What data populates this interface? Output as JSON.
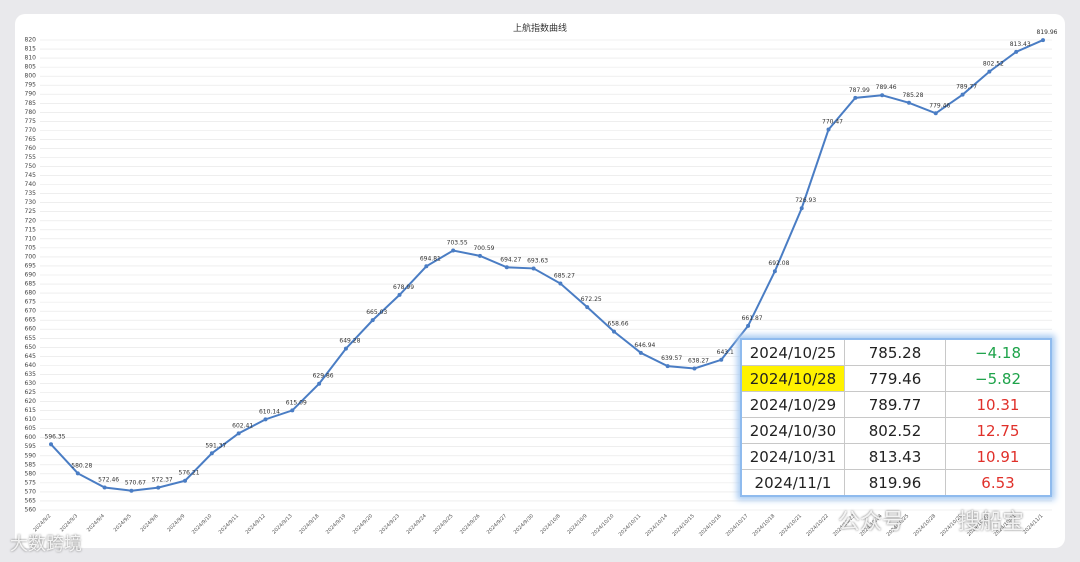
{
  "chart_data": {
    "type": "line",
    "title": "上航指数曲线",
    "categories": [
      "2024/9/2",
      "2024/9/3",
      "2024/9/4",
      "2024/9/5",
      "2024/9/6",
      "2024/9/9",
      "2024/9/10",
      "2024/9/11",
      "2024/9/12",
      "2024/9/13",
      "2024/9/18",
      "2024/9/19",
      "2024/9/20",
      "2024/9/23",
      "2024/9/24",
      "2024/9/25",
      "2024/9/26",
      "2024/9/27",
      "2024/9/30",
      "2024/10/8",
      "2024/10/9",
      "2024/10/10",
      "2024/10/11",
      "2024/10/14",
      "2024/10/15",
      "2024/10/16",
      "2024/10/17",
      "2024/10/18",
      "2024/10/21",
      "2024/10/22",
      "2024/10/23",
      "2024/10/24",
      "2024/10/25",
      "2024/10/28",
      "2024/10/29",
      "2024/10/30",
      "2024/10/31",
      "2024/11/1"
    ],
    "values": [
      596.35,
      580.28,
      572.46,
      570.67,
      572.37,
      576.21,
      591.37,
      602.41,
      610.14,
      615.09,
      629.86,
      649.28,
      665.03,
      678.99,
      694.81,
      703.55,
      700.59,
      694.27,
      693.63,
      685.27,
      672.25,
      658.66,
      646.94,
      639.57,
      638.27,
      643.1,
      661.87,
      692.08,
      726.93,
      770.47,
      787.99,
      789.46,
      785.28,
      779.46,
      789.77,
      802.52,
      813.43,
      819.96
    ],
    "color": "#4a7dc4",
    "ylim": [
      560,
      820
    ],
    "yticks": [
      560,
      565,
      570,
      575,
      580,
      585,
      590,
      595,
      600,
      605,
      610,
      615,
      620,
      625,
      630,
      635,
      640,
      645,
      650,
      655,
      660,
      665,
      670,
      675,
      680,
      685,
      690,
      695,
      700,
      705,
      710,
      715,
      720,
      725,
      730,
      735,
      740,
      745,
      750,
      755,
      760,
      765,
      770,
      775,
      780,
      785,
      790,
      795,
      800,
      805,
      810,
      815,
      820
    ],
    "grid": true
  },
  "table": {
    "rows": [
      [
        "2024/10/25",
        "785.28",
        "−4.18"
      ],
      [
        "2024/10/28",
        "779.46",
        "−5.82"
      ],
      [
        "2024/10/29",
        "789.77",
        "10.31"
      ],
      [
        "2024/10/30",
        "802.52",
        "12.75"
      ],
      [
        "2024/10/31",
        "813.43",
        "10.91"
      ],
      [
        "2024/11/1",
        "819.96",
        "6.53"
      ]
    ]
  },
  "watermarks": [
    "大数跨境",
    "公众号",
    "搜船宝"
  ]
}
